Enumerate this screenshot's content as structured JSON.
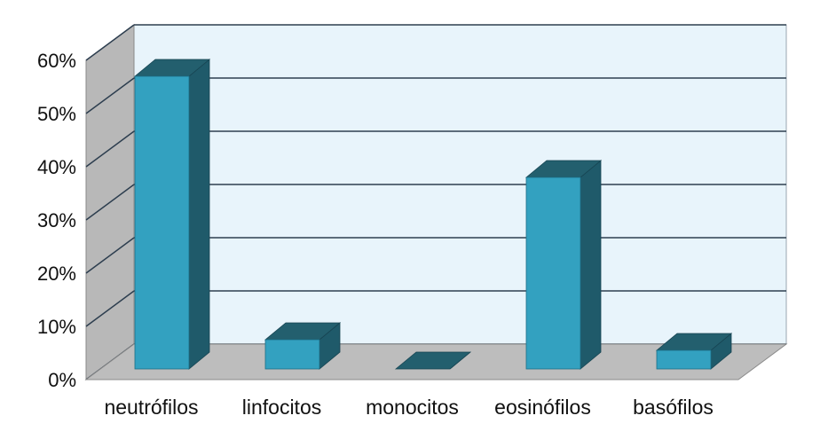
{
  "chart_data": {
    "type": "bar",
    "title": "",
    "xlabel": "",
    "ylabel": "",
    "categories": [
      "neutrófilos",
      "linfocitos",
      "monocitos",
      "eosinófilos",
      "basófilos"
    ],
    "values": [
      55,
      5.5,
      0,
      36,
      3.5
    ],
    "ylim": [
      0,
      60
    ],
    "yticks": [
      0,
      10,
      20,
      30,
      40,
      50,
      60
    ],
    "ytick_labels": [
      "0%",
      "10%",
      "20%",
      "30%",
      "40%",
      "50%",
      "60%"
    ],
    "grid": true,
    "legend": "none",
    "three_d": true,
    "colors": {
      "bar_front": "#33a1c0",
      "bar_side": "#1f5a6a",
      "bar_top": "#235f6e",
      "wall": "#e8f4fb",
      "side_wall": "#b8b8b8",
      "floor": "#bdbdbd",
      "grid": "#2d3e4f"
    }
  }
}
